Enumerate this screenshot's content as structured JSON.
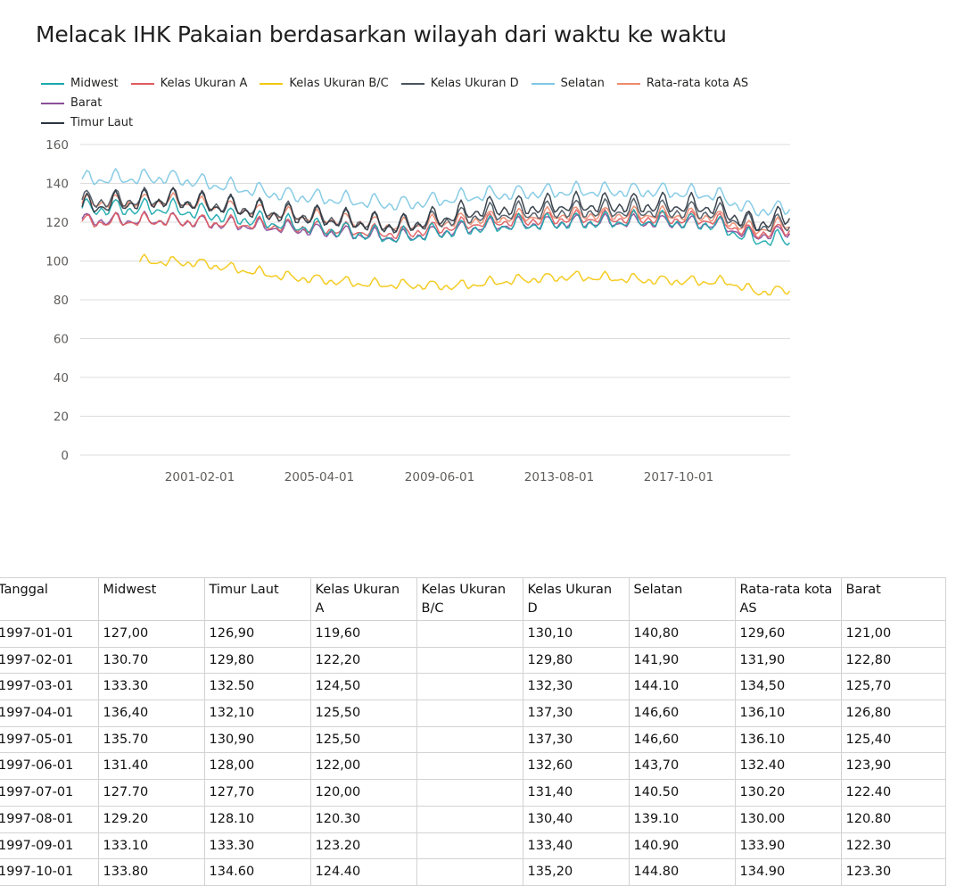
{
  "chart_title": "Melacak IHK Pakaian berdasarkan wilayah dari waktu ke waktu",
  "legend": [
    {
      "label": "Midwest",
      "color": "#1aa8ad"
    },
    {
      "label": "Kelas Ukuran A",
      "color": "#e05a5e"
    },
    {
      "label": "Kelas Ukuran B/C",
      "color": "#f2c811"
    },
    {
      "label": "Kelas Ukuran D",
      "color": "#4a5560"
    },
    {
      "label": "Selatan",
      "color": "#7ec8e3"
    },
    {
      "label": "Rata-rata kota AS",
      "color": "#ee8a6c"
    },
    {
      "label": "Barat",
      "color": "#8a4e9a"
    },
    {
      "label": "Timur Laut",
      "color": "#2b3540"
    }
  ],
  "chart_data": {
    "type": "line",
    "title": "Melacak IHK Pakaian berdasarkan wilayah dari waktu ke waktu",
    "xlabel": "",
    "ylabel": "",
    "ylim": [
      0,
      160
    ],
    "yticks": [
      0,
      20,
      40,
      60,
      80,
      100,
      120,
      140,
      160
    ],
    "xtick_labels": [
      "2001-02-01",
      "2005-04-01",
      "2009-06-01",
      "2013-08-01",
      "2017-10-01"
    ],
    "x_range": [
      "1997-01-01",
      "2021-08-01"
    ],
    "grid": true,
    "legend_position": "top",
    "series": [
      {
        "name": "Midwest",
        "color": "#1aa8ad",
        "anchors": [
          [
            1997,
            127
          ],
          [
            2000,
            127
          ],
          [
            2004,
            119
          ],
          [
            2008,
            112
          ],
          [
            2011,
            118
          ],
          [
            2014,
            120
          ],
          [
            2017,
            121
          ],
          [
            2019,
            119
          ],
          [
            2020.3,
            111
          ],
          [
            2021.6,
            111
          ]
        ],
        "amp": 4.5
      },
      {
        "name": "Kelas Ukuran A",
        "color": "#e05a5e",
        "anchors": [
          [
            1997,
            120
          ],
          [
            2000,
            121
          ],
          [
            2004,
            118
          ],
          [
            2008,
            114
          ],
          [
            2011,
            120
          ],
          [
            2014,
            122
          ],
          [
            2017,
            122
          ],
          [
            2019,
            121
          ],
          [
            2020.3,
            114
          ],
          [
            2021.6,
            116
          ]
        ],
        "amp": 3.5
      },
      {
        "name": "Kelas Ukuran B/C",
        "start": 1999.0,
        "color": "#f2c811",
        "anchors": [
          [
            1999,
            100
          ],
          [
            2001,
            99
          ],
          [
            2004,
            92
          ],
          [
            2007,
            88
          ],
          [
            2010,
            87
          ],
          [
            2012,
            90
          ],
          [
            2014,
            92
          ],
          [
            2017,
            90
          ],
          [
            2019.5,
            89
          ],
          [
            2020.4,
            84
          ],
          [
            2021.6,
            85
          ]
        ],
        "amp": 2.5
      },
      {
        "name": "Kelas Ukuran D",
        "color": "#4a5560",
        "anchors": [
          [
            1997,
            131
          ],
          [
            2000,
            132
          ],
          [
            2004,
            125
          ],
          [
            2008,
            118
          ],
          [
            2011,
            124
          ],
          [
            2014,
            126
          ],
          [
            2017,
            126
          ],
          [
            2019,
            125
          ],
          [
            2020.3,
            118
          ],
          [
            2021.6,
            119
          ]
        ],
        "amp": 5
      },
      {
        "name": "Selatan",
        "color": "#7ec8e3",
        "anchors": [
          [
            1997,
            142
          ],
          [
            2000,
            143
          ],
          [
            2004,
            134
          ],
          [
            2008,
            129
          ],
          [
            2011,
            134
          ],
          [
            2014,
            136
          ],
          [
            2017,
            136
          ],
          [
            2019,
            134
          ],
          [
            2020.3,
            126
          ],
          [
            2021.6,
            127
          ]
        ],
        "amp": 4
      },
      {
        "name": "Rata-rata kota AS",
        "color": "#ee8a6c",
        "anchors": [
          [
            1997,
            130
          ],
          [
            2000,
            131
          ],
          [
            2004,
            124
          ],
          [
            2008,
            118
          ],
          [
            2011,
            122
          ],
          [
            2014,
            124
          ],
          [
            2017,
            124
          ],
          [
            2019,
            123
          ],
          [
            2020.3,
            116
          ],
          [
            2021.6,
            119
          ]
        ],
        "amp": 3.5
      },
      {
        "name": "Barat",
        "color": "#8a4e9a",
        "anchors": [
          [
            1997,
            121
          ],
          [
            2000,
            121
          ],
          [
            2004,
            117
          ],
          [
            2008,
            112
          ],
          [
            2011,
            118
          ],
          [
            2014,
            120
          ],
          [
            2017,
            120
          ],
          [
            2019,
            119
          ],
          [
            2020.3,
            113
          ],
          [
            2021.6,
            115
          ]
        ],
        "amp": 3.5
      },
      {
        "name": "Timur Laut",
        "color": "#2b3540",
        "anchors": [
          [
            1997,
            128
          ],
          [
            2000,
            132
          ],
          [
            2004,
            124
          ],
          [
            2008,
            118
          ],
          [
            2011,
            127
          ],
          [
            2014,
            129
          ],
          [
            2017,
            129
          ],
          [
            2019,
            128
          ],
          [
            2020.3,
            119
          ],
          [
            2021.6,
            123
          ]
        ],
        "amp": 5.5
      }
    ]
  },
  "table": {
    "columns": [
      "Tanggal",
      "Midwest",
      "Timur Laut",
      "Kelas Ukuran A",
      "Kelas Ukuran B/C",
      "Kelas Ukuran D",
      "Selatan",
      "Rata-rata kota AS",
      "Barat"
    ],
    "rows": [
      [
        "1997-01-01",
        "127,00",
        "126,90",
        "119,60",
        "",
        "130,10",
        "140,80",
        "129,60",
        "121,00"
      ],
      [
        "1997-02-01",
        "130.70",
        "129,80",
        "122,20",
        "",
        "129,80",
        "141,90",
        "131,90",
        "122,80"
      ],
      [
        "1997-03-01",
        "133.30",
        "132.50",
        "124,50",
        "",
        "132,30",
        "144.10",
        "134,50",
        "125,70"
      ],
      [
        "1997-04-01",
        "136,40",
        "132,10",
        "125,50",
        "",
        "137,30",
        "146,60",
        "136,10",
        "126,80"
      ],
      [
        "1997-05-01",
        "135.70",
        "130,90",
        "125,50",
        "",
        "137,30",
        "146,60",
        "136.10",
        "125,40"
      ],
      [
        "1997-06-01",
        "131.40",
        "128,00",
        "122,00",
        "",
        "132,60",
        "143,70",
        "132.40",
        "123,90"
      ],
      [
        "1997-07-01",
        "127.70",
        "127,70",
        "120,00",
        "",
        "131,40",
        "140.50",
        "130.20",
        "122.40"
      ],
      [
        "1997-08-01",
        "129.20",
        "128.10",
        "120.30",
        "",
        "130,40",
        "139.10",
        "130.00",
        "120.80"
      ],
      [
        "1997-09-01",
        "133.10",
        "133.30",
        "123.20",
        "",
        "133,40",
        "140.90",
        "133.90",
        "122.30"
      ],
      [
        "1997-10-01",
        "133.80",
        "134.60",
        "124.40",
        "",
        "135,20",
        "144.80",
        "134.90",
        "123.30"
      ]
    ]
  }
}
